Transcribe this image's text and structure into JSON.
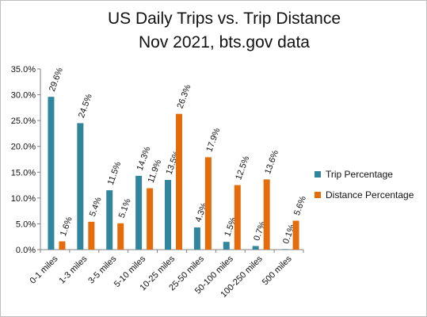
{
  "chart_data": {
    "type": "bar",
    "title_lines": [
      "US Daily Trips vs. Trip Distance",
      "Nov 2021, bts.gov data"
    ],
    "categories": [
      "0-1 miles",
      "1-3 miles",
      "3-5 miles",
      "5-10 miles",
      "10-25 miles",
      "25-50 miles",
      "50-100 miles",
      "100-250 miles",
      "500 miles"
    ],
    "series": [
      {
        "name": "Trip Percentage",
        "color": "#31859c",
        "values": [
          29.6,
          24.5,
          11.5,
          14.3,
          13.5,
          4.3,
          1.5,
          0.7,
          0.1
        ],
        "labels": [
          "29.6%",
          "24.5%",
          "11.5%",
          "14.3%",
          "13.5%",
          "4.3%",
          "1.5%",
          "0.7%",
          "0.1%"
        ]
      },
      {
        "name": "Distance Percentage",
        "color": "#e46c0a",
        "values": [
          1.6,
          5.4,
          5.1,
          11.9,
          26.3,
          17.9,
          12.5,
          13.6,
          5.6
        ],
        "labels": [
          "1.6%",
          "5.4%",
          "5.1%",
          "11.9%",
          "26.3%",
          "17.9%",
          "12.5%",
          "13.6%",
          "5.6%"
        ]
      }
    ],
    "ylim": [
      0,
      35
    ],
    "yticks": [
      0,
      5,
      10,
      15,
      20,
      25,
      30,
      35
    ],
    "ytick_labels": [
      "0.0%",
      "5.0%",
      "10.0%",
      "15.0%",
      "20.0%",
      "25.0%",
      "30.0%",
      "35.0%"
    ],
    "xlabel": "",
    "ylabel": "",
    "grid": false,
    "legend_position": "right"
  }
}
